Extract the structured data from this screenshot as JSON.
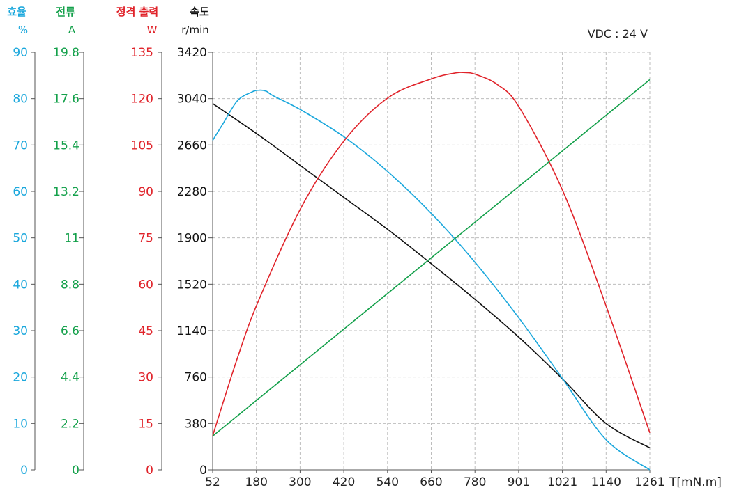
{
  "annotation": "VDC : 24 V",
  "axes": {
    "efficiency": {
      "title": "효율",
      "unit": "%",
      "color": "#1aa7dc",
      "ticks": [
        "90",
        "80",
        "70",
        "60",
        "50",
        "40",
        "30",
        "20",
        "10",
        "0"
      ],
      "range": [
        0,
        90
      ]
    },
    "current": {
      "title": "전류",
      "unit": "A",
      "color": "#13a04a",
      "ticks": [
        "19.8",
        "17.6",
        "15.4",
        "13.2",
        "11",
        "8.8",
        "6.6",
        "4.4",
        "2.2",
        "0"
      ],
      "range": [
        0,
        19.8
      ]
    },
    "power": {
      "title": "정격 출력",
      "unit": "W",
      "color": "#e0232a",
      "ticks": [
        "135",
        "120",
        "105",
        "90",
        "75",
        "60",
        "45",
        "30",
        "15",
        "0"
      ],
      "range": [
        0,
        135
      ]
    },
    "speed": {
      "title": "속도",
      "unit": "r/min",
      "color": "#111111",
      "ticks": [
        "3420",
        "3040",
        "2660",
        "2280",
        "1900",
        "1520",
        "1140",
        "760",
        "380",
        "0"
      ],
      "range": [
        0,
        3420
      ]
    },
    "torque": {
      "label": "T[mN.m]",
      "ticks": [
        "52",
        "180",
        "300",
        "420",
        "540",
        "660",
        "780",
        "901",
        "1021",
        "1140",
        "1261"
      ],
      "range": [
        52,
        1261
      ]
    }
  },
  "chart_data": {
    "type": "line",
    "title": "",
    "xlabel": "T[mN.m]",
    "xlim": [
      52,
      1261
    ],
    "series": [
      {
        "axis": "speed",
        "color": "#111111",
        "x": [
          52,
          180,
          300,
          420,
          540,
          660,
          780,
          901,
          1021,
          1140,
          1261
        ],
        "y": [
          3000,
          2740,
          2480,
          2220,
          1960,
          1680,
          1390,
          1080,
          740,
          380,
          180
        ]
      },
      {
        "axis": "efficiency",
        "color": "#1aa7dc",
        "x": [
          52,
          80,
          120,
          160,
          180,
          200,
          220,
          300,
          420,
          540,
          660,
          780,
          901,
          1021,
          1140,
          1261
        ],
        "y": [
          71,
          74.5,
          79.5,
          81.4,
          81.8,
          81.6,
          80.6,
          77.4,
          71.5,
          64,
          55,
          44.5,
          32.5,
          19.5,
          6.5,
          0
        ]
      },
      {
        "axis": "power",
        "color": "#e0232a",
        "x": [
          52,
          120,
          180,
          300,
          420,
          540,
          660,
          720,
          750,
          780,
          840,
          901,
          1021,
          1140,
          1261
        ],
        "y": [
          11,
          36,
          55,
          85.5,
          107,
          120.5,
          126.5,
          128.2,
          128.4,
          127.8,
          124.5,
          117,
          90,
          53,
          12
        ]
      },
      {
        "axis": "current",
        "color": "#13a04a",
        "x": [
          52,
          1261
        ],
        "y": [
          1.6,
          18.5
        ]
      }
    ]
  }
}
